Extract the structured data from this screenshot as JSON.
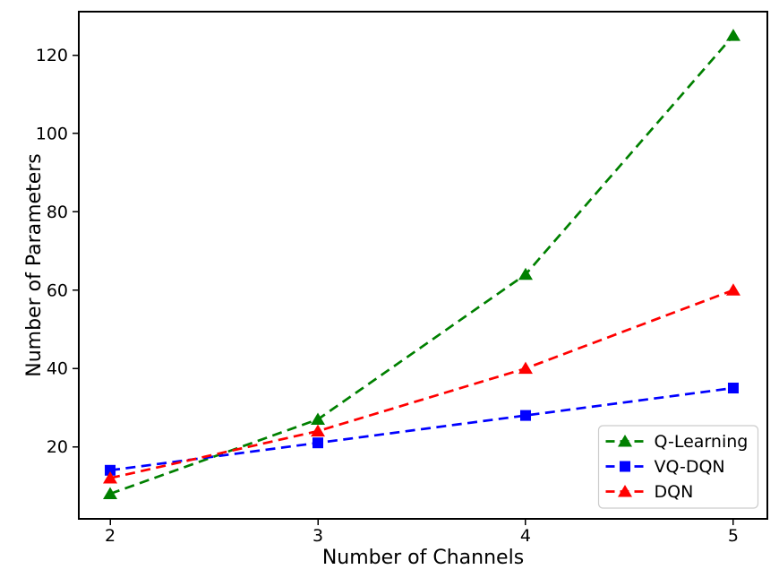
{
  "chart_data": {
    "type": "line",
    "title": "",
    "xlabel": "Number of Channels",
    "ylabel": "Number of Parameters",
    "x": [
      2,
      3,
      4,
      5
    ],
    "series": [
      {
        "name": "Q-Learning",
        "values": [
          8,
          27,
          64,
          125
        ],
        "color": "#008000",
        "marker": "triangle-up",
        "linestyle": "dashed"
      },
      {
        "name": "VQ-DQN",
        "values": [
          14,
          21,
          28,
          35
        ],
        "color": "#0000ff",
        "marker": "square",
        "linestyle": "dashed"
      },
      {
        "name": "DQN",
        "values": [
          12,
          24,
          40,
          60
        ],
        "color": "#ff0000",
        "marker": "triangle-up",
        "linestyle": "dashed"
      }
    ],
    "xticks": [
      2,
      3,
      4,
      5
    ],
    "yticks": [
      20,
      40,
      60,
      80,
      100,
      120
    ],
    "xlim": [
      1.849,
      5.164
    ],
    "ylim": [
      1.6,
      131.1
    ],
    "grid": false,
    "legend": {
      "position": "lower right",
      "labels": [
        "Q-Learning",
        "VQ-DQN",
        "DQN"
      ],
      "border_color": "#cccccc",
      "background": "#ffffff"
    },
    "axis_color": "#000000",
    "background_color": "#ffffff"
  }
}
